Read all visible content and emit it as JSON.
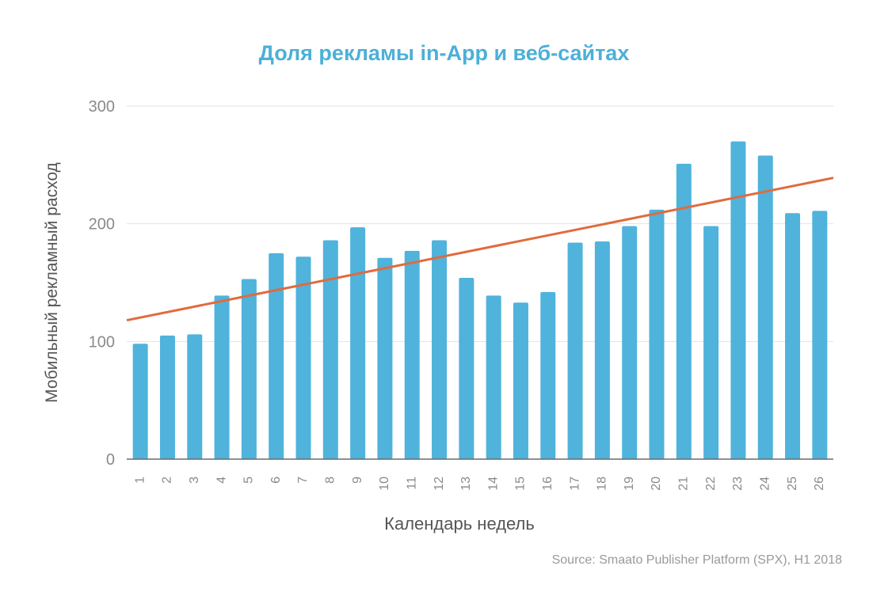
{
  "chart_data": {
    "type": "bar",
    "title": "Доля рекламы in-App и веб-сайтах",
    "xlabel": "Календарь недель",
    "ylabel": "Мобильный рекламный расход",
    "source": "Source: Smaato Publisher Platform (SPX), H1 2018",
    "categories": [
      "1",
      "2",
      "3",
      "4",
      "5",
      "6",
      "7",
      "8",
      "9",
      "10",
      "11",
      "12",
      "13",
      "14",
      "15",
      "16",
      "17",
      "18",
      "19",
      "20",
      "21",
      "22",
      "23",
      "24",
      "25",
      "26"
    ],
    "values": [
      98,
      105,
      106,
      139,
      153,
      175,
      172,
      186,
      197,
      171,
      177,
      186,
      154,
      139,
      133,
      142,
      184,
      185,
      198,
      212,
      251,
      198,
      270,
      258,
      209,
      211
    ],
    "ylim": [
      0,
      300
    ],
    "yticks": [
      0,
      100,
      200,
      300
    ],
    "trendline": {
      "start": 118,
      "end": 239
    },
    "colors": {
      "bar": "#4fb3dc",
      "trend": "#e06b3e",
      "title": "#4bb0d8"
    },
    "grid": true
  }
}
